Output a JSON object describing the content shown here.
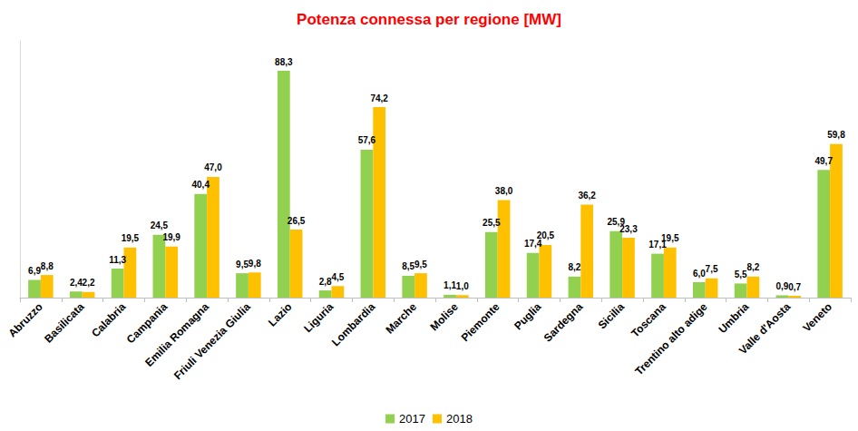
{
  "chart_data": {
    "type": "bar",
    "title": "Potenza connessa per regione [MW]",
    "categories": [
      "Abruzzo",
      "Basilicata",
      "Calabria",
      "Campania",
      "Emilia Romagna",
      "Friuli Venezia Giulia",
      "Lazio",
      "Liguria",
      "Lombardia",
      "Marche",
      "Molise",
      "Piemonte",
      "Puglia",
      "Sardegna",
      "Sicilia",
      "Toscana",
      "Trentino alto adige",
      "Umbria",
      "Valle d'Aosta",
      "Veneto"
    ],
    "series": [
      {
        "name": "2017",
        "color": "#92d050",
        "values": [
          6.9,
          2.4,
          11.3,
          24.5,
          40.4,
          9.5,
          88.3,
          2.8,
          57.6,
          8.5,
          1.1,
          25.5,
          17.4,
          8.2,
          25.9,
          17.1,
          6.0,
          5.5,
          0.9,
          49.7
        ],
        "value_labels": [
          "6,9",
          "2,4",
          "11,3",
          "24,5",
          "40,4",
          "9,5",
          "88,3",
          "2,8",
          "57,6",
          "8,5",
          "1,1",
          "25,5",
          "17,4",
          "8,2",
          "25,9",
          "17,1",
          "6,0",
          "5,5",
          "0,9",
          "49,7"
        ]
      },
      {
        "name": "2018",
        "color": "#ffc000",
        "values": [
          8.8,
          2.2,
          19.5,
          19.9,
          47.0,
          9.8,
          26.5,
          4.5,
          74.2,
          9.5,
          1.0,
          38.0,
          20.5,
          36.2,
          23.3,
          19.5,
          7.5,
          8.2,
          0.7,
          59.8
        ],
        "value_labels": [
          "8,8",
          "2,2",
          "19,5",
          "19,9",
          "47,0",
          "9,8",
          "26,5",
          "4,5",
          "74,2",
          "9,5",
          "1,0",
          "38,0",
          "20,5",
          "36,2",
          "23,3",
          "19,5",
          "7,5",
          "8,2",
          "0,7",
          "59,8"
        ]
      }
    ],
    "ylim": [
      0,
      100
    ],
    "grid": false,
    "legend": "bottom",
    "data_labels": true,
    "tick_labels": "x"
  }
}
